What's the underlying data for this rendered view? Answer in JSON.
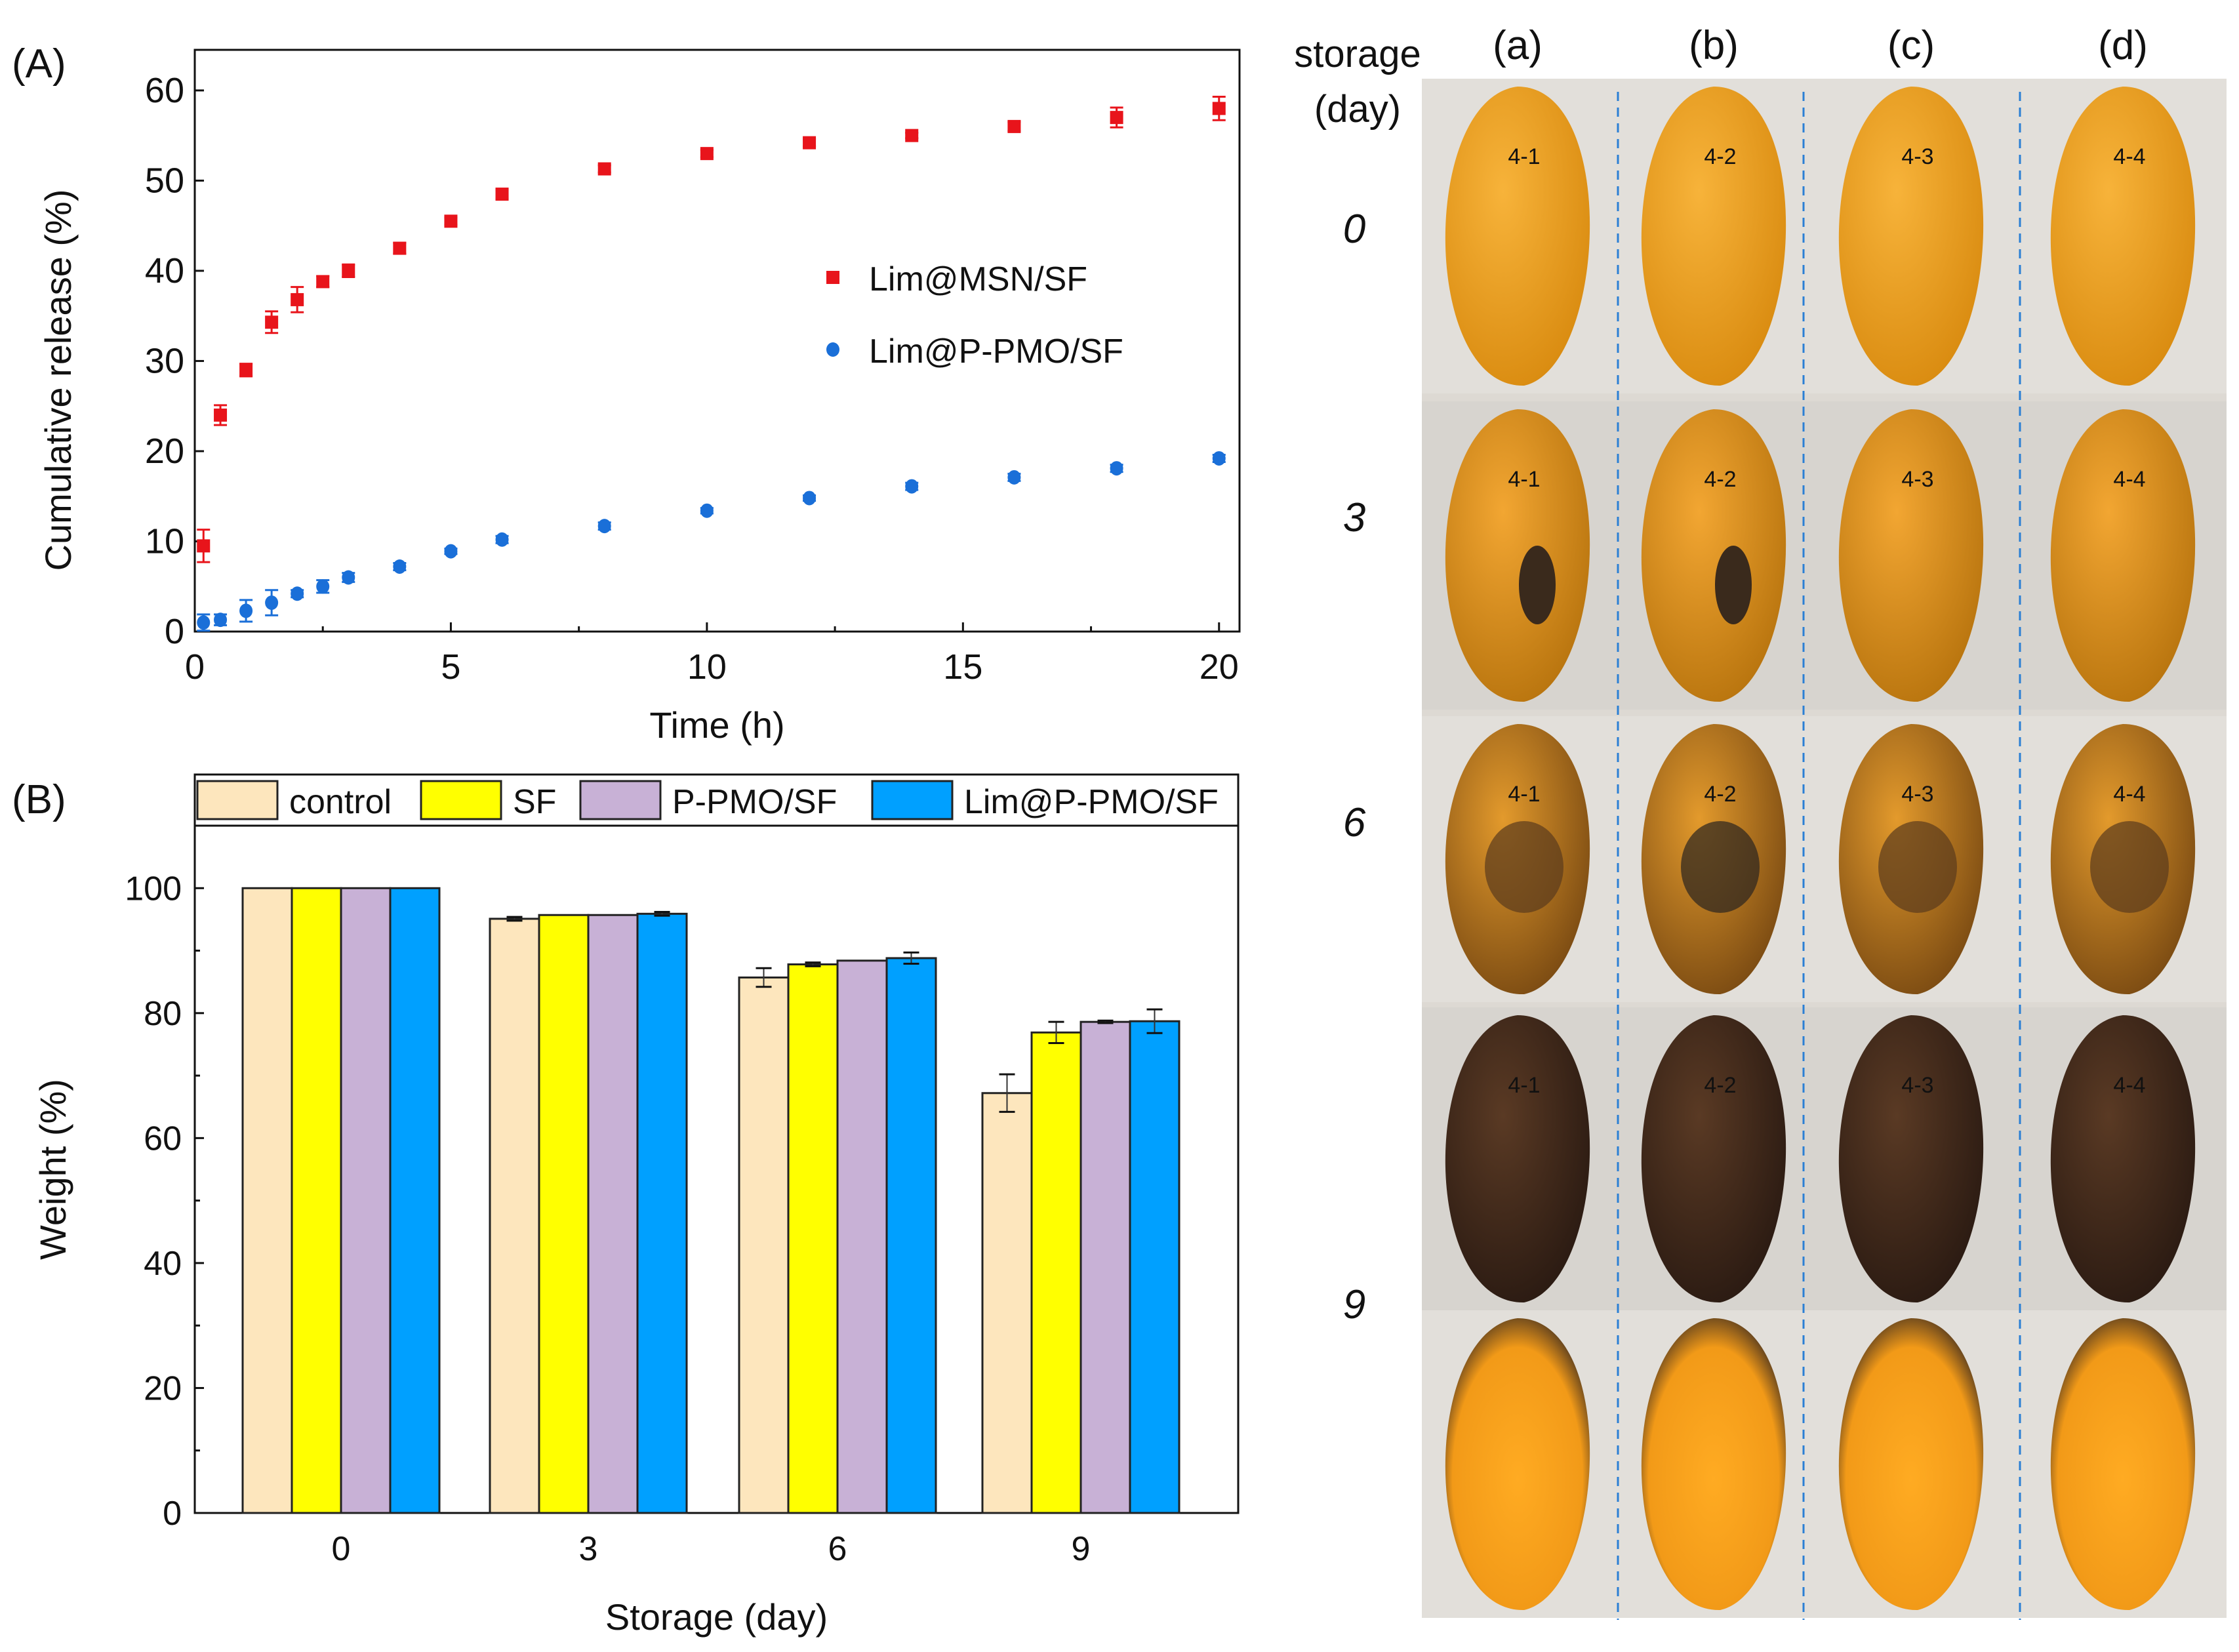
{
  "panel_labels": {
    "a": "(A)",
    "b": "(B)"
  },
  "chart_data": [
    {
      "type": "scatter",
      "xlabel": "Time (h)",
      "ylabel": "Cumulative release (%)",
      "xlim": [
        0,
        20.4
      ],
      "ylim": [
        0,
        64.5
      ],
      "xticks": [
        "0",
        "5",
        "10",
        "15",
        "20"
      ],
      "yticks": [
        "0",
        "10",
        "20",
        "30",
        "40",
        "50",
        "60"
      ],
      "grid": false,
      "legend_position": "center-right",
      "x": [
        0.17,
        0.5,
        1,
        1.5,
        2,
        2.5,
        3,
        4,
        5,
        6,
        8,
        10,
        12,
        14,
        16,
        18,
        20
      ],
      "series": [
        {
          "name": "Lim@MSN/SF",
          "marker": "square",
          "color": "#e8141b",
          "values": [
            9.5,
            24,
            29,
            34.3,
            36.8,
            38.8,
            40,
            42.5,
            45.5,
            48.5,
            51.3,
            53,
            54.2,
            55,
            56,
            57,
            58
          ],
          "errors": [
            1.8,
            1.1,
            0.7,
            1.2,
            1.4,
            0.6,
            0.7,
            0.6,
            0.4,
            0.5,
            0.4,
            0.4,
            0.4,
            0.3,
            0.5,
            1.1,
            1.3
          ]
        },
        {
          "name": "Lim@P-PMO/SF",
          "marker": "circle",
          "color": "#1a6fd8",
          "values": [
            1.0,
            1.3,
            2.3,
            3.2,
            4.2,
            5.0,
            6.0,
            7.2,
            8.9,
            10.2,
            11.7,
            13.4,
            14.8,
            16.1,
            17.1,
            18.1,
            19.2
          ],
          "errors": [
            0.9,
            0.6,
            1.2,
            1.4,
            0.4,
            0.7,
            0.5,
            0.4,
            0.3,
            0.4,
            0.4,
            0.3,
            0.3,
            0.4,
            0.4,
            0.4,
            0.4
          ]
        }
      ]
    },
    {
      "type": "bar",
      "xlabel": "Storage (day)",
      "ylabel": "Weight (%)",
      "ylim": [
        0,
        110
      ],
      "yticks": [
        "0",
        "20",
        "40",
        "60",
        "80",
        "100"
      ],
      "categories": [
        "0",
        "3",
        "6",
        "9"
      ],
      "grid": false,
      "legend_position": "top",
      "series": [
        {
          "name": "control",
          "color": "#fde6bd",
          "values": [
            100,
            95.1,
            85.7,
            67.2
          ],
          "errors": [
            0,
            0.3,
            1.5,
            3.0
          ]
        },
        {
          "name": "SF",
          "color": "#ffff00",
          "values": [
            100,
            95.7,
            87.8,
            76.9
          ],
          "errors": [
            0,
            0,
            0.3,
            1.7
          ]
        },
        {
          "name": "P-PMO/SF",
          "color": "#c8b1d6",
          "values": [
            100,
            95.7,
            88.4,
            78.6
          ],
          "errors": [
            0,
            0,
            0,
            0.2
          ]
        },
        {
          "name": "Lim@P-PMO/SF",
          "color": "#00a0ff",
          "values": [
            100,
            95.9,
            88.8,
            78.7
          ],
          "errors": [
            0,
            0.3,
            0.9,
            1.9
          ]
        }
      ]
    }
  ],
  "photos": {
    "storage_label_1": "storage",
    "storage_label_2": "(day)",
    "columns": [
      "(a)",
      "(b)",
      "(c)",
      "(d)"
    ],
    "rows": [
      "0",
      "3",
      "6",
      "9"
    ],
    "fruit_labels": [
      "4-1",
      "4-2",
      "4-3",
      "4-4"
    ]
  }
}
